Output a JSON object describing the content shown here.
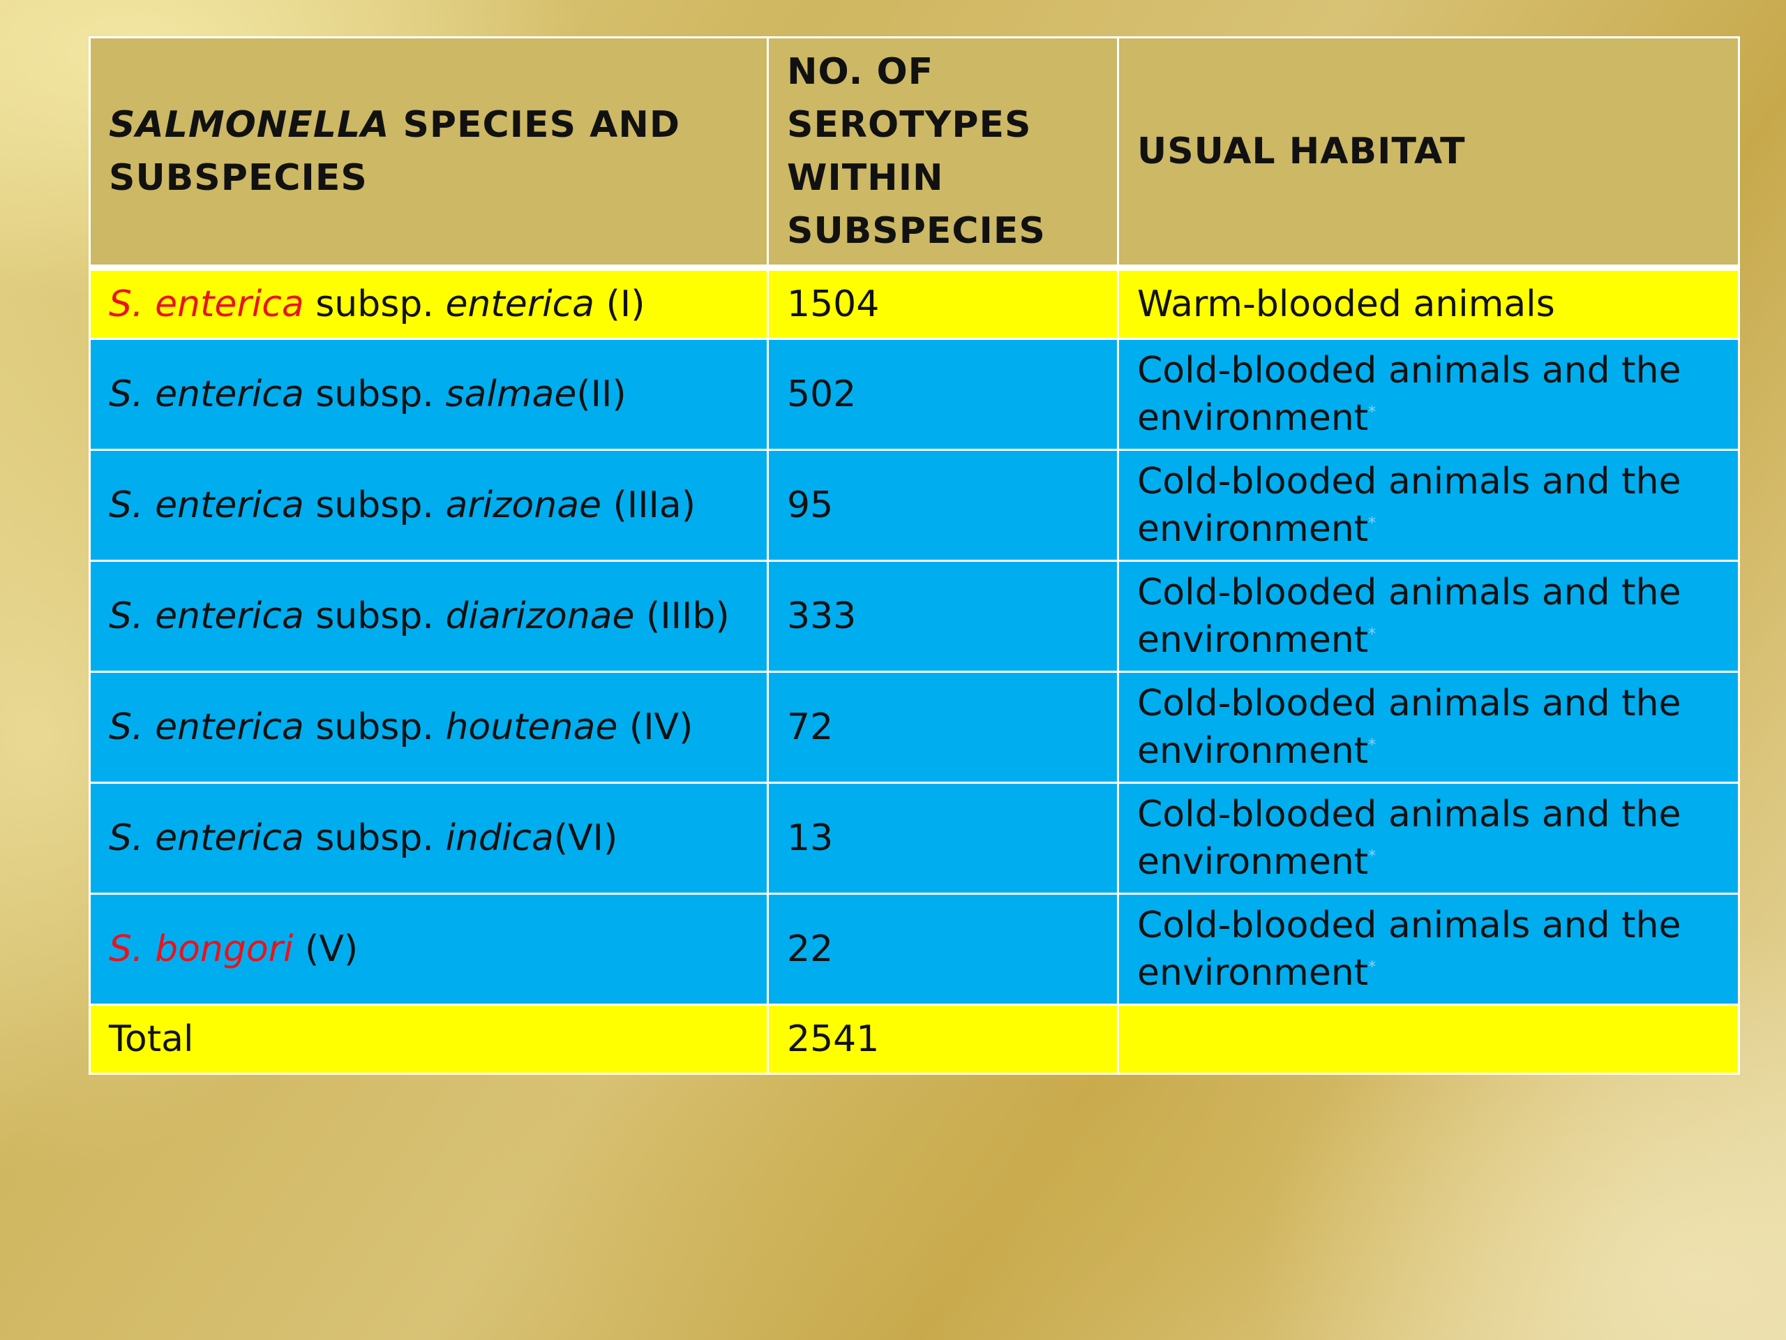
{
  "table": {
    "headers": {
      "col1_italic": "SALMONELLA",
      "col1_rest": "SPECIES AND SUBSPECIES",
      "col2": "NO. OF SEROTYPES WITHIN SUBSPECIES",
      "col3": "USUAL HABITAT"
    },
    "rows": [
      {
        "genus": "S. enterica",
        "genus_color": "#e8141c",
        "subsp_label": "subsp.",
        "subsp": "enterica",
        "suffix": "(I)",
        "count": "1504",
        "habitat": "Warm-blooded animals",
        "asterisk": "",
        "row_color": "#ffff00"
      },
      {
        "genus": "S. enterica",
        "genus_color": "#111111",
        "subsp_label": "subsp.",
        "subsp": "salmae",
        "suffix": "(II)",
        "count": "502",
        "habitat": "Cold-blooded animals and the environment",
        "asterisk": "*",
        "row_color": "#00aeef"
      },
      {
        "genus": "S. enterica",
        "genus_color": "#111111",
        "subsp_label": "subsp.",
        "subsp": "arizonae",
        "suffix": "(IIIa)",
        "count": "95",
        "habitat": "Cold-blooded animals and the environment",
        "asterisk": "*",
        "row_color": "#00aeef"
      },
      {
        "genus": "S. enterica",
        "genus_color": "#111111",
        "subsp_label": "subsp.",
        "subsp": "diarizonae",
        "suffix": "(IIIb)",
        "count": "333",
        "habitat": "Cold-blooded animals and the environment",
        "asterisk": "*",
        "row_color": "#00aeef"
      },
      {
        "genus": "S. enterica",
        "genus_color": "#111111",
        "subsp_label": "subsp.",
        "subsp": "houtenae",
        "suffix": "(IV)",
        "count": "72",
        "habitat": "Cold-blooded animals and the environment",
        "asterisk": "*",
        "row_color": "#00aeef"
      },
      {
        "genus": "S. enterica",
        "genus_color": "#111111",
        "subsp_label": "subsp.",
        "subsp": "indica",
        "suffix": "(VI)",
        "count": "13",
        "habitat": "Cold-blooded animals and the environment",
        "asterisk": "*",
        "row_color": "#00aeef"
      },
      {
        "genus": "S. bongori",
        "genus_color": "#e8141c",
        "subsp_label": "",
        "subsp": "",
        "suffix": "(V)",
        "count": "22",
        "habitat": "Cold-blooded animals and the environment",
        "asterisk": "*",
        "row_color": "#00aeef"
      }
    ],
    "total": {
      "label": "Total",
      "count": "2541",
      "habitat": ""
    }
  }
}
